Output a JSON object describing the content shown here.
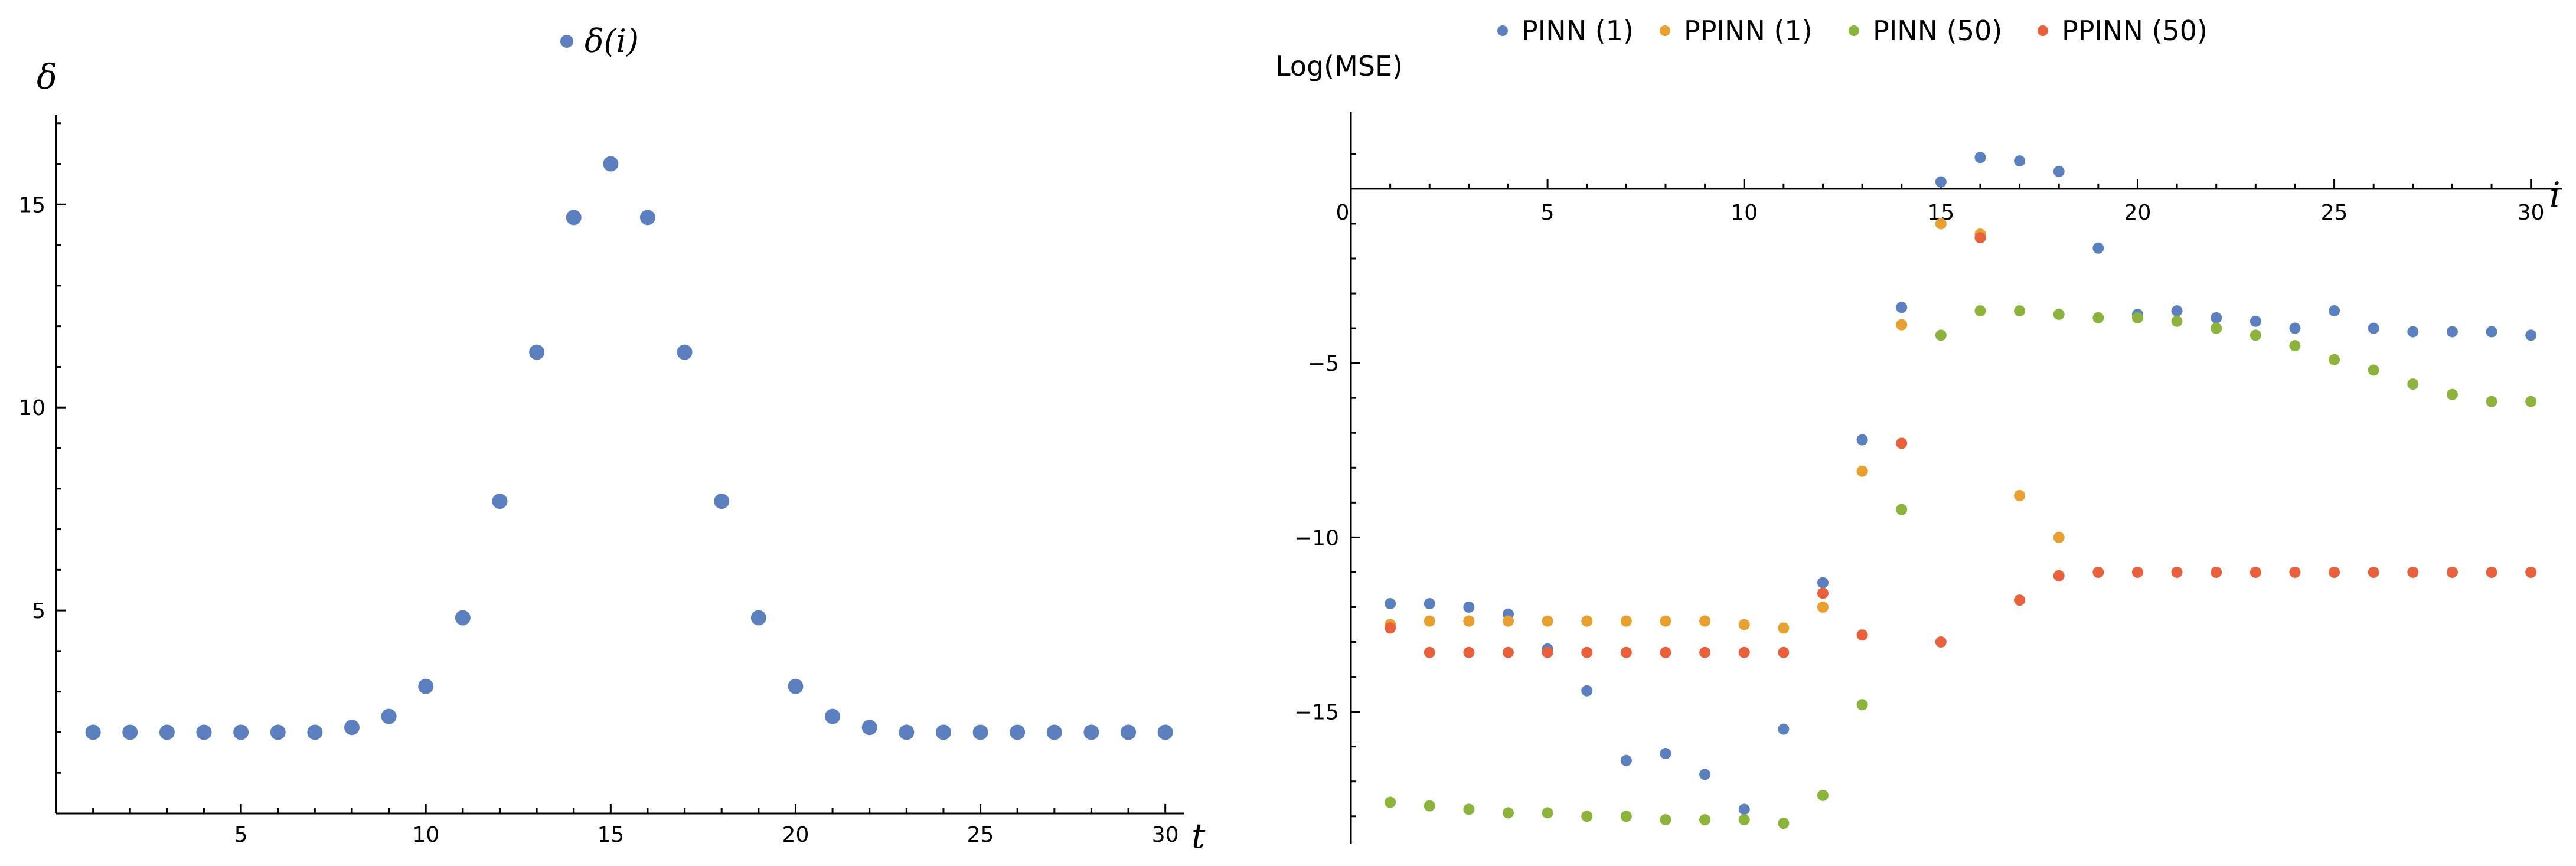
{
  "chart_data": [
    {
      "type": "scatter",
      "xlabel": "t",
      "ylabel": "δ",
      "xlim": [
        0,
        30.5
      ],
      "ylim": [
        0,
        17.2
      ],
      "xticks": [
        5,
        10,
        15,
        20,
        25,
        30
      ],
      "yticks": [
        5,
        10,
        15
      ],
      "legend": {
        "position": "top-center"
      },
      "series": [
        {
          "name": "δ(i)",
          "color": "#5b7fbf",
          "x": [
            1,
            2,
            3,
            4,
            5,
            6,
            7,
            8,
            9,
            10,
            11,
            12,
            13,
            14,
            15,
            16,
            17,
            18,
            19,
            20,
            21,
            22,
            23,
            24,
            25,
            26,
            27,
            28,
            29,
            30
          ],
          "y": [
            2,
            2,
            2,
            2,
            2,
            2,
            2,
            2.12,
            2.39,
            3.13,
            4.82,
            7.69,
            11.36,
            14.68,
            16,
            14.68,
            11.36,
            7.69,
            4.82,
            3.13,
            2.39,
            2.12,
            2,
            2,
            2,
            2,
            2,
            2,
            2,
            2
          ]
        }
      ]
    },
    {
      "type": "scatter",
      "xlabel": "i",
      "ylabel": "Log(MSE)",
      "xlim": [
        0,
        30.5
      ],
      "ylim": [
        -18.8,
        2.2
      ],
      "xticks": [
        0,
        5,
        10,
        15,
        20,
        25,
        30
      ],
      "yticks": [
        -5,
        -10,
        -15
      ],
      "legend": {
        "position": "top"
      },
      "series": [
        {
          "name": "PINN (1)",
          "color": "#5b7fbf",
          "x": [
            1,
            2,
            3,
            4,
            5,
            6,
            7,
            8,
            9,
            10,
            11,
            12,
            13,
            14,
            15,
            16,
            17,
            18,
            19,
            20,
            21,
            22,
            23,
            24,
            25,
            26,
            27,
            28,
            29,
            30
          ],
          "y": [
            -11.9,
            -11.9,
            -12.0,
            -12.2,
            -13.2,
            -14.4,
            -16.4,
            -16.2,
            -16.8,
            -17.8,
            -15.5,
            -11.3,
            -7.2,
            -3.4,
            0.2,
            0.9,
            0.8,
            0.5,
            -1.7,
            -3.6,
            -3.5,
            -3.7,
            -3.8,
            -4.0,
            -3.5,
            -4.0,
            -4.1,
            -4.1,
            -4.1,
            -4.2
          ]
        },
        {
          "name": "PPINN (1)",
          "color": "#e8a030",
          "x": [
            1,
            2,
            3,
            4,
            5,
            6,
            7,
            8,
            9,
            10,
            11,
            12,
            13,
            14,
            15,
            16,
            17,
            18
          ],
          "y": [
            -12.5,
            -12.4,
            -12.4,
            -12.4,
            -12.4,
            -12.4,
            -12.4,
            -12.4,
            -12.4,
            -12.5,
            -12.6,
            -12.0,
            -8.1,
            -3.9,
            -1.0,
            -1.3,
            -8.8,
            -10.0
          ]
        },
        {
          "name": "PINN (50)",
          "color": "#8cb43c",
          "x": [
            1,
            2,
            3,
            4,
            5,
            6,
            7,
            8,
            9,
            10,
            11,
            12,
            13,
            14,
            15,
            16,
            17,
            18,
            19,
            20,
            21,
            22,
            23,
            24,
            25,
            26,
            27,
            28,
            29,
            30
          ],
          "y": [
            -17.6,
            -17.7,
            -17.8,
            -17.9,
            -17.9,
            -18.0,
            -18.0,
            -18.1,
            -18.1,
            -18.1,
            -18.2,
            -17.4,
            -14.8,
            -9.2,
            -4.2,
            -3.5,
            -3.5,
            -3.6,
            -3.7,
            -3.7,
            -3.8,
            -4.0,
            -4.2,
            -4.5,
            -4.9,
            -5.2,
            -5.6,
            -5.9,
            -6.1,
            -6.1
          ]
        },
        {
          "name": "PPINN (50)",
          "color": "#e8603c",
          "x": [
            1,
            2,
            3,
            4,
            5,
            6,
            7,
            8,
            9,
            10,
            11,
            12,
            13,
            14,
            15,
            16,
            17,
            18,
            19,
            20,
            21,
            22,
            23,
            24,
            25,
            26,
            27,
            28,
            29,
            30
          ],
          "y": [
            -12.6,
            -13.3,
            -13.3,
            -13.3,
            -13.3,
            -13.3,
            -13.3,
            -13.3,
            -13.3,
            -13.3,
            -13.3,
            -11.6,
            -12.8,
            -7.3,
            -13.0,
            -1.4,
            -11.8,
            -11.1,
            -11.0,
            -11.0,
            -11.0,
            -11.0,
            -11.0,
            -11.0,
            -11.0,
            -11.0,
            -11.0,
            -11.0,
            -11.0,
            -11.0
          ]
        }
      ]
    }
  ]
}
